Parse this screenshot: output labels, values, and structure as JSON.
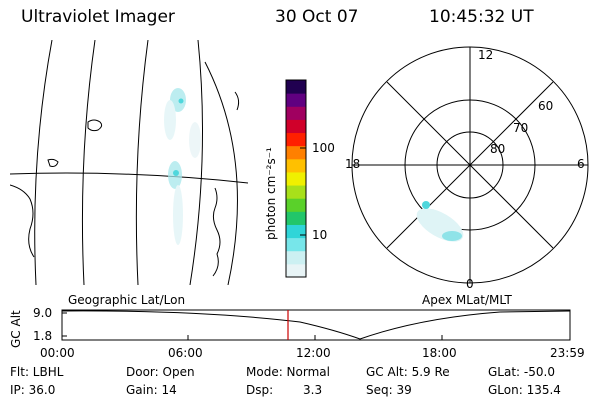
{
  "header": {
    "instrument": "Ultraviolet Imager",
    "date": "30 Oct 07",
    "time": "10:45:32 UT"
  },
  "colorbar": {
    "label": "photon cm⁻²s⁻¹",
    "tick_100": "100",
    "tick_10": "10",
    "colors": [
      "#e8f4f6",
      "#ccf0f2",
      "#77e6ea",
      "#2fd5d8",
      "#22c66a",
      "#5ad12a",
      "#a8e01a",
      "#f0f000",
      "#ffc000",
      "#ff8000",
      "#ff2000",
      "#d0002a",
      "#a00060",
      "#600080",
      "#200050"
    ]
  },
  "polar": {
    "mlt_top": "12",
    "mlt_left": "18",
    "mlt_right": "6",
    "mlt_bottom": "0",
    "lat_60": "60",
    "lat_70": "70",
    "lat_80": "80"
  },
  "labels": {
    "geo": "Geographic Lat/Lon",
    "apex": "Apex MLat/MLT"
  },
  "altplot": {
    "axis_label": "GC Alt",
    "ytick_top": "9.0",
    "ytick_bottom": "1.8",
    "xticks": [
      "00:00",
      "06:00",
      "12:00",
      "18:00",
      "23:59"
    ],
    "cursor_color": "#cc0000"
  },
  "footer": {
    "filt": "Flt: LBHL",
    "door": "Door: Open",
    "mode": "Mode: Normal",
    "gcalt": "GC Alt: 5.9 Re",
    "glat": "GLat: -50.0",
    "ip": "IP: 36.0",
    "gain": "Gain: 14",
    "dsp_label": "Dsp:",
    "dsp_value": "3.3",
    "seq": "Seq: 39",
    "glon": "GLon: 135.4"
  }
}
